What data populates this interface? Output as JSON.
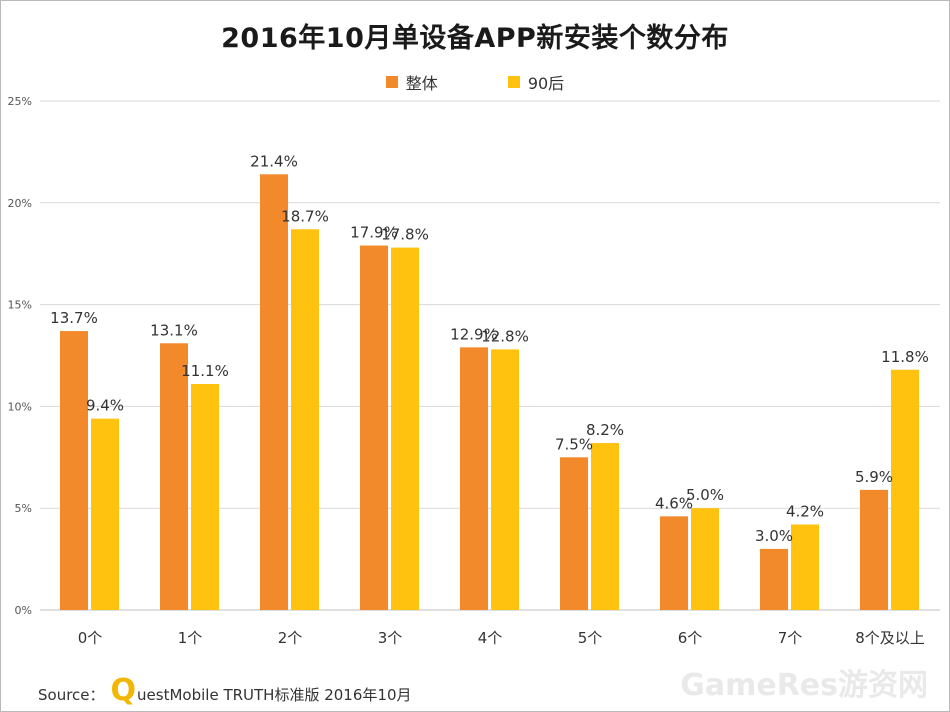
{
  "title": "2016年10月单设备APP新安装个数分布",
  "source": {
    "prefix": "Source：",
    "brand_initial": "Q",
    "rest": "uestMobile TRUTH标准版 2016年10月"
  },
  "watermark": "GameRes游资网",
  "colors": {
    "series1": "#f28a2c",
    "series2": "#ffc20e",
    "grid": "#d9d9d9"
  },
  "chart_data": {
    "type": "bar",
    "title": "2016年10月单设备APP新安装个数分布",
    "categories": [
      "0个",
      "1个",
      "2个",
      "3个",
      "4个",
      "5个",
      "6个",
      "7个",
      "8个及以上"
    ],
    "series": [
      {
        "name": "整体",
        "values": [
          13.7,
          13.1,
          21.4,
          17.9,
          12.9,
          7.5,
          4.6,
          3.0,
          5.9
        ],
        "labels": [
          "13.7%",
          "13.1%",
          "21.4%",
          "17.9%",
          "12.9%",
          "7.5%",
          "4.6%",
          "3.0%",
          "5.9%"
        ]
      },
      {
        "name": "90后",
        "values": [
          9.4,
          11.1,
          18.7,
          17.8,
          12.8,
          8.2,
          5.0,
          4.2,
          11.8
        ],
        "labels": [
          "9.4%",
          "11.1%",
          "18.7%",
          "17.8%",
          "12.8%",
          "8.2%",
          "5.0%",
          "4.2%",
          "11.8%"
        ]
      }
    ],
    "yticks": [
      "0%",
      "5%",
      "10%",
      "15%",
      "20%",
      "25%"
    ],
    "ylim": [
      0,
      25
    ],
    "legend": "top-center",
    "grid": true
  }
}
